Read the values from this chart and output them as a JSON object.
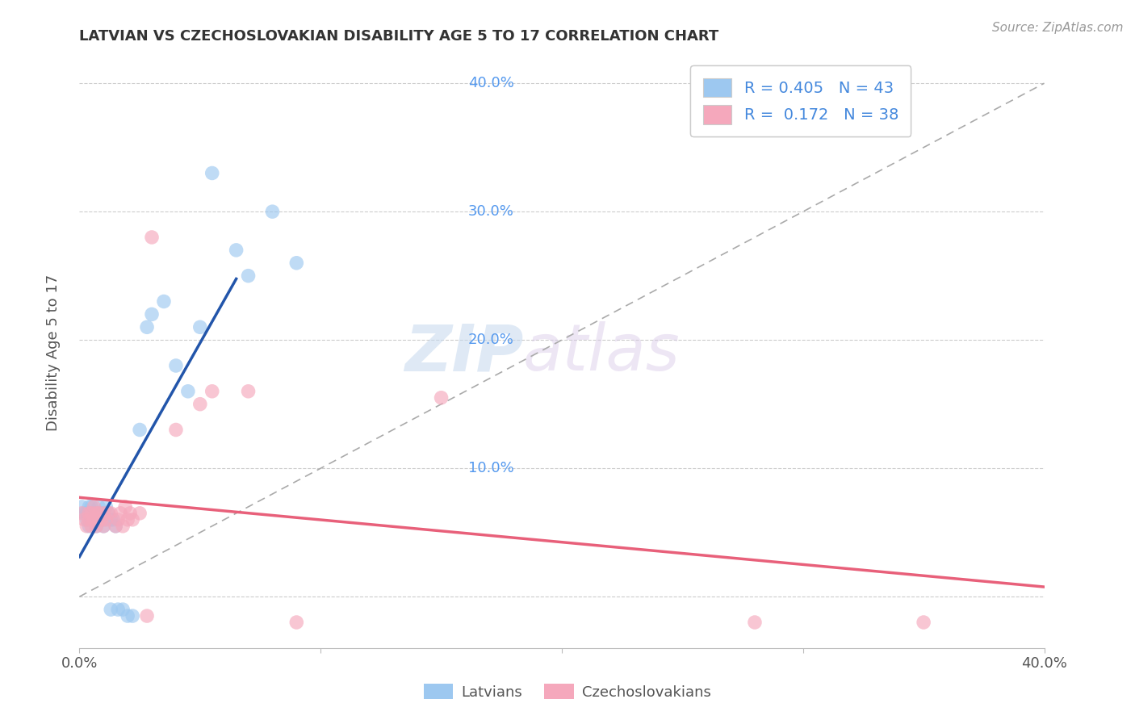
{
  "title": "LATVIAN VS CZECHOSLOVAKIAN DISABILITY AGE 5 TO 17 CORRELATION CHART",
  "source": "Source: ZipAtlas.com",
  "ylabel": "Disability Age 5 to 17",
  "xlabel": "",
  "xlim": [
    0.0,
    0.4
  ],
  "ylim": [
    -0.04,
    0.42
  ],
  "background_color": "#ffffff",
  "grid_color": "#cccccc",
  "watermark_zip": "ZIP",
  "watermark_atlas": "atlas",
  "legend_r1": "R = 0.405",
  "legend_n1": "N = 43",
  "legend_r2": "R =  0.172",
  "legend_n2": "N = 38",
  "color_latvian": "#9DC8F0",
  "color_czechoslovakian": "#F5A8BC",
  "line_color_latvian": "#2255AA",
  "line_color_czechoslovakian": "#E8607A",
  "diag_color": "#AAAAAA",
  "right_tick_color": "#5599EE",
  "latvian_scatter_x": [
    0.001,
    0.002,
    0.003,
    0.003,
    0.004,
    0.004,
    0.005,
    0.005,
    0.005,
    0.006,
    0.006,
    0.007,
    0.007,
    0.008,
    0.008,
    0.008,
    0.009,
    0.009,
    0.01,
    0.01,
    0.01,
    0.011,
    0.012,
    0.013,
    0.013,
    0.014,
    0.015,
    0.016,
    0.018,
    0.02,
    0.022,
    0.025,
    0.028,
    0.03,
    0.035,
    0.04,
    0.045,
    0.05,
    0.055,
    0.065,
    0.07,
    0.08,
    0.09
  ],
  "latvian_scatter_y": [
    0.07,
    0.065,
    0.06,
    0.065,
    0.055,
    0.07,
    0.06,
    0.065,
    0.07,
    0.06,
    0.065,
    0.055,
    0.065,
    0.06,
    0.065,
    0.07,
    0.06,
    0.065,
    0.055,
    0.06,
    0.065,
    0.07,
    0.065,
    0.06,
    -0.01,
    0.06,
    0.055,
    -0.01,
    -0.01,
    -0.015,
    -0.015,
    0.13,
    0.21,
    0.22,
    0.23,
    0.18,
    0.16,
    0.21,
    0.33,
    0.27,
    0.25,
    0.3,
    0.26
  ],
  "czechoslovakian_scatter_x": [
    0.001,
    0.002,
    0.003,
    0.004,
    0.004,
    0.005,
    0.005,
    0.006,
    0.006,
    0.007,
    0.007,
    0.008,
    0.008,
    0.009,
    0.01,
    0.01,
    0.011,
    0.012,
    0.013,
    0.015,
    0.016,
    0.017,
    0.018,
    0.019,
    0.02,
    0.021,
    0.022,
    0.025,
    0.028,
    0.03,
    0.04,
    0.05,
    0.055,
    0.07,
    0.09,
    0.15,
    0.28,
    0.35
  ],
  "czechoslovakian_scatter_y": [
    0.065,
    0.06,
    0.055,
    0.06,
    0.065,
    0.055,
    0.065,
    0.06,
    0.07,
    0.055,
    0.065,
    0.06,
    0.065,
    0.06,
    0.055,
    0.065,
    0.06,
    0.065,
    0.065,
    0.055,
    0.06,
    0.065,
    0.055,
    0.07,
    0.06,
    0.065,
    0.06,
    0.065,
    -0.015,
    0.28,
    0.13,
    0.15,
    0.16,
    0.16,
    -0.02,
    0.155,
    -0.02,
    -0.02
  ]
}
